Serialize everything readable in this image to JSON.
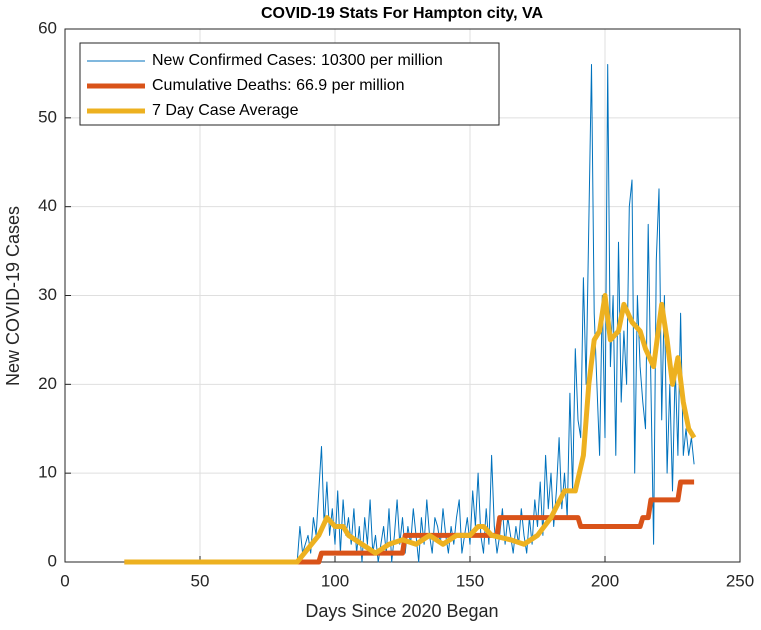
{
  "chart_data": {
    "type": "line",
    "title": "COVID-19 Stats For Hampton city, VA",
    "xlabel": "Days Since 2020 Began",
    "ylabel": "New COVID-19 Cases",
    "xlim": [
      0,
      250
    ],
    "xticks": [
      0,
      50,
      100,
      150,
      200,
      250
    ],
    "ylim": [
      0,
      60
    ],
    "yticks": [
      0,
      10,
      20,
      30,
      40,
      50,
      60
    ],
    "grid": true,
    "legend": "upper left",
    "series": [
      {
        "name": "New Confirmed Cases: 10300 per million",
        "color": "#0072bd",
        "width": 1,
        "x": [
          22,
          85,
          86,
          87,
          88,
          89,
          90,
          91,
          92,
          93,
          94,
          95,
          96,
          97,
          98,
          99,
          100,
          101,
          102,
          103,
          104,
          105,
          106,
          107,
          108,
          109,
          110,
          111,
          112,
          113,
          114,
          115,
          116,
          117,
          118,
          119,
          120,
          121,
          122,
          123,
          124,
          125,
          126,
          127,
          128,
          129,
          130,
          131,
          132,
          133,
          134,
          135,
          136,
          137,
          138,
          139,
          140,
          141,
          142,
          143,
          144,
          145,
          146,
          147,
          148,
          149,
          150,
          151,
          152,
          153,
          154,
          155,
          156,
          157,
          158,
          159,
          160,
          161,
          162,
          163,
          164,
          165,
          166,
          167,
          168,
          169,
          170,
          171,
          172,
          173,
          174,
          175,
          176,
          177,
          178,
          179,
          180,
          181,
          182,
          183,
          184,
          185,
          186,
          187,
          188,
          189,
          190,
          191,
          192,
          193,
          194,
          195,
          196,
          197,
          198,
          199,
          200,
          201,
          202,
          203,
          204,
          205,
          206,
          207,
          208,
          209,
          210,
          211,
          212,
          213,
          214,
          215,
          216,
          217,
          218,
          219,
          220,
          221,
          222,
          223,
          224,
          225,
          226,
          227,
          228,
          229,
          230,
          231,
          232,
          233
        ],
        "values": [
          0,
          0,
          0,
          4,
          1,
          2,
          3,
          1,
          5,
          3,
          8,
          13,
          4,
          9,
          3,
          6,
          2,
          8,
          1,
          7,
          3,
          5,
          2,
          6,
          1,
          4,
          0,
          5,
          2,
          7,
          1,
          3,
          0,
          2,
          4,
          1,
          6,
          0,
          3,
          7,
          2,
          5,
          1,
          4,
          2,
          6,
          3,
          0,
          5,
          2,
          7,
          3,
          1,
          5,
          4,
          2,
          6,
          3,
          1,
          4,
          2,
          5,
          7,
          1,
          3,
          5,
          2,
          8,
          4,
          10,
          3,
          1,
          6,
          2,
          12,
          4,
          1,
          3,
          6,
          2,
          5,
          3,
          1,
          4,
          2,
          6,
          3,
          1,
          5,
          2,
          7,
          4,
          9,
          3,
          12,
          6,
          10,
          4,
          8,
          14,
          6,
          10,
          5,
          19,
          8,
          24,
          16,
          14,
          32,
          20,
          38,
          56,
          28,
          20,
          12,
          30,
          14,
          56,
          22,
          30,
          12,
          36,
          18,
          26,
          20,
          40,
          43,
          10,
          30,
          22,
          18,
          15,
          38,
          20,
          2,
          34,
          42,
          16,
          30,
          10,
          20,
          8,
          22,
          12,
          28,
          12,
          15,
          12,
          14,
          11
        ]
      },
      {
        "name": "Cumulative Deaths: 66.9 per million",
        "color": "#d95319",
        "width": 5,
        "x": [
          22,
          94,
          95,
          125,
          126,
          160,
          161,
          190,
          191,
          213,
          214,
          216,
          217,
          227,
          228,
          233
        ],
        "values": [
          0,
          0,
          1,
          1,
          3,
          3,
          5,
          5,
          4,
          4,
          5,
          5,
          7,
          7,
          9,
          9
        ]
      },
      {
        "name": "7 Day Case Average",
        "color": "#edb120",
        "width": 5,
        "x": [
          22,
          86,
          90,
          94,
          97,
          100,
          103,
          105,
          110,
          115,
          120,
          125,
          130,
          135,
          140,
          145,
          150,
          153,
          155,
          158,
          165,
          170,
          175,
          180,
          185,
          189,
          192,
          194,
          196,
          198,
          200,
          202,
          205,
          207,
          210,
          213,
          215,
          218,
          221,
          223,
          225,
          227,
          229,
          231,
          233
        ],
        "values": [
          0,
          0,
          1.5,
          3,
          5,
          4,
          4,
          3,
          2,
          1,
          2,
          2.5,
          2,
          3,
          2,
          3,
          3,
          4,
          4,
          3,
          2.5,
          2,
          3,
          5,
          8,
          8,
          12,
          20,
          25,
          26,
          30,
          25,
          26,
          29,
          27,
          26,
          24,
          22,
          29,
          25,
          20,
          23,
          18,
          15,
          14
        ]
      }
    ]
  }
}
